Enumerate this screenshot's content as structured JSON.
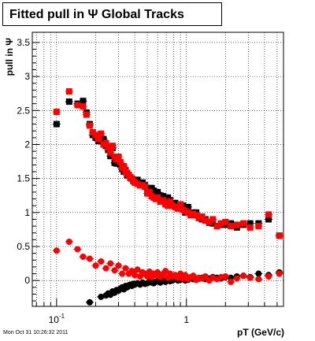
{
  "header": {
    "title": "Fitted pull in  Ψ   Global Tracks"
  },
  "footer": {
    "timestamp": "Mon Oct 31 10:26:32 2011"
  },
  "colors": {
    "series_black": "#000000",
    "series_red": "#ff0000",
    "grid": "#000000"
  },
  "chart_data": {
    "type": "scatter",
    "title": "Fitted pull in Ψ Global Tracks",
    "xlabel": "pT (GeV/c)",
    "ylabel": "pull in Ψ",
    "x_scale": "log",
    "xlim": [
      0.065,
      5.6
    ],
    "ylim": [
      -0.38,
      3.65
    ],
    "grid": true,
    "x_ticks": [
      {
        "v": 0.1,
        "label": "10",
        "sup": "-1"
      },
      {
        "v": 1,
        "label": "1",
        "sup": ""
      }
    ],
    "y_ticks": [
      0,
      0.5,
      1,
      1.5,
      2,
      2.5,
      3,
      3.5
    ],
    "series": [
      {
        "color": "#000000",
        "marker": "square",
        "x": [
          0.1,
          0.125,
          0.145,
          0.16,
          0.17,
          0.18,
          0.19,
          0.2,
          0.21,
          0.22,
          0.23,
          0.24,
          0.25,
          0.26,
          0.27,
          0.28,
          0.29,
          0.3,
          0.31,
          0.32,
          0.33,
          0.34,
          0.35,
          0.36,
          0.37,
          0.38,
          0.39,
          0.4,
          0.42,
          0.44,
          0.46,
          0.48,
          0.5,
          0.52,
          0.54,
          0.56,
          0.58,
          0.6,
          0.63,
          0.66,
          0.69,
          0.72,
          0.75,
          0.78,
          0.82,
          0.86,
          0.9,
          0.94,
          0.98,
          1.03,
          1.08,
          1.13,
          1.19,
          1.25,
          1.32,
          1.4,
          1.5,
          1.6,
          1.72,
          1.85,
          2.0,
          2.2,
          2.45,
          2.75,
          3.1,
          3.6,
          4.3,
          5.2
        ],
        "y": [
          2.3,
          2.63,
          2.6,
          2.64,
          2.47,
          2.3,
          2.14,
          2.1,
          2.05,
          2.12,
          2.08,
          1.98,
          1.92,
          1.83,
          1.95,
          1.73,
          1.72,
          1.72,
          1.7,
          1.64,
          1.6,
          1.62,
          1.55,
          1.55,
          1.51,
          1.5,
          1.48,
          1.47,
          1.48,
          1.42,
          1.44,
          1.4,
          1.36,
          1.35,
          1.36,
          1.32,
          1.28,
          1.3,
          1.25,
          1.24,
          1.18,
          1.22,
          1.18,
          1.12,
          1.14,
          1.06,
          1.08,
          1.1,
          1.0,
          1.08,
          0.98,
          1.0,
          1.0,
          0.92,
          0.9,
          0.9,
          0.85,
          0.84,
          0.8,
          0.82,
          0.82,
          0.84,
          0.78,
          0.82,
          0.84,
          0.84,
          0.9,
          0.66
        ]
      },
      {
        "color": "#ff0000",
        "marker": "square",
        "x": [
          0.1,
          0.125,
          0.145,
          0.16,
          0.17,
          0.18,
          0.19,
          0.2,
          0.21,
          0.22,
          0.23,
          0.24,
          0.25,
          0.26,
          0.27,
          0.28,
          0.29,
          0.3,
          0.31,
          0.32,
          0.33,
          0.34,
          0.35,
          0.36,
          0.37,
          0.38,
          0.39,
          0.4,
          0.42,
          0.44,
          0.46,
          0.48,
          0.5,
          0.52,
          0.54,
          0.56,
          0.58,
          0.6,
          0.63,
          0.66,
          0.69,
          0.72,
          0.75,
          0.78,
          0.82,
          0.86,
          0.9,
          0.94,
          0.98,
          1.03,
          1.08,
          1.13,
          1.19,
          1.25,
          1.32,
          1.4,
          1.5,
          1.6,
          1.72,
          1.85,
          2.0,
          2.2,
          2.45,
          2.75,
          3.1,
          3.6,
          4.3,
          5.2
        ],
        "y": [
          2.48,
          2.78,
          2.58,
          2.56,
          2.44,
          2.28,
          2.18,
          2.14,
          2.08,
          2.16,
          2.0,
          2.02,
          1.96,
          1.88,
          1.98,
          1.82,
          1.78,
          1.82,
          1.74,
          1.66,
          1.68,
          1.6,
          1.58,
          1.54,
          1.52,
          1.5,
          1.46,
          1.44,
          1.42,
          1.4,
          1.4,
          1.38,
          1.28,
          1.3,
          1.24,
          1.22,
          1.2,
          1.22,
          1.16,
          1.18,
          1.12,
          1.1,
          1.16,
          1.1,
          1.08,
          1.06,
          1.12,
          1.04,
          1.02,
          1.0,
          0.96,
          0.98,
          0.96,
          0.92,
          0.94,
          0.88,
          0.86,
          0.9,
          0.8,
          0.84,
          0.86,
          0.8,
          0.82,
          0.84,
          0.78,
          0.8,
          0.97,
          0.66
        ]
      },
      {
        "color": "#000000",
        "marker": "circle",
        "x": [
          0.18,
          0.22,
          0.24,
          0.25,
          0.26,
          0.27,
          0.28,
          0.29,
          0.3,
          0.31,
          0.32,
          0.33,
          0.34,
          0.35,
          0.36,
          0.37,
          0.38,
          0.39,
          0.4,
          0.42,
          0.44,
          0.46,
          0.48,
          0.5,
          0.52,
          0.54,
          0.56,
          0.58,
          0.6,
          0.63,
          0.66,
          0.69,
          0.72,
          0.75,
          0.78,
          0.82,
          0.86,
          0.9,
          0.94,
          0.98,
          1.03,
          1.08,
          1.13,
          1.19,
          1.25,
          1.32,
          1.4,
          1.5,
          1.6,
          1.72,
          1.85,
          2.0,
          2.2,
          2.45,
          2.75,
          3.1,
          3.6,
          4.3,
          5.2
        ],
        "y": [
          -0.32,
          -0.24,
          -0.22,
          -0.19,
          -0.21,
          -0.16,
          -0.18,
          -0.14,
          -0.15,
          -0.12,
          -0.1,
          -0.13,
          -0.08,
          -0.1,
          -0.07,
          -0.06,
          -0.08,
          -0.05,
          -0.06,
          -0.04,
          -0.06,
          -0.03,
          -0.05,
          -0.04,
          -0.02,
          -0.03,
          -0.04,
          -0.02,
          -0.01,
          -0.03,
          0.0,
          -0.02,
          0.01,
          -0.01,
          0.0,
          0.02,
          0.0,
          0.01,
          0.02,
          0.0,
          0.01,
          0.03,
          0.02,
          0.01,
          0.03,
          0.04,
          0.02,
          0.03,
          0.05,
          0.04,
          0.03,
          0.05,
          0.04,
          0.06,
          0.07,
          0.05,
          0.1,
          0.08,
          0.12
        ]
      },
      {
        "color": "#ff0000",
        "marker": "circle",
        "x": [
          0.1,
          0.125,
          0.145,
          0.16,
          0.18,
          0.2,
          0.22,
          0.24,
          0.26,
          0.28,
          0.3,
          0.32,
          0.34,
          0.36,
          0.38,
          0.4,
          0.42,
          0.44,
          0.46,
          0.48,
          0.5,
          0.52,
          0.54,
          0.56,
          0.58,
          0.6,
          0.63,
          0.66,
          0.69,
          0.72,
          0.75,
          0.78,
          0.82,
          0.86,
          0.9,
          0.94,
          0.98,
          1.03,
          1.08,
          1.13,
          1.19,
          1.25,
          1.32,
          1.4,
          1.5,
          1.6,
          1.72,
          1.85,
          2.0,
          2.2,
          2.45,
          2.75,
          3.1,
          3.6,
          4.3,
          5.2
        ],
        "y": [
          0.44,
          0.57,
          0.46,
          0.35,
          0.32,
          0.22,
          0.28,
          0.18,
          0.25,
          0.15,
          0.22,
          0.1,
          0.18,
          0.1,
          0.14,
          0.08,
          0.16,
          0.06,
          0.12,
          0.1,
          0.06,
          0.13,
          0.05,
          0.1,
          0.08,
          0.12,
          0.05,
          0.09,
          0.14,
          0.04,
          0.1,
          0.06,
          0.08,
          0.04,
          0.1,
          0.03,
          0.08,
          0.02,
          0.05,
          0.07,
          0.01,
          0.04,
          0.03,
          0.06,
          0.0,
          0.04,
          0.02,
          0.05,
          0.06,
          -0.02,
          0.03,
          0.07,
          0.04,
          0.02,
          0.06,
          0.1
        ]
      }
    ]
  }
}
